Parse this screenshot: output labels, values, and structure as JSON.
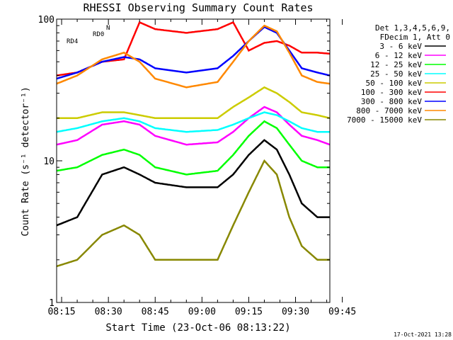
{
  "chart_data": {
    "type": "line",
    "title": "RHESSI Observing Summary Count Rates",
    "xlabel": "Start Time (23-Oct-06 08:13:22)",
    "ylabel": "Count Rate (s⁻¹ detector⁻¹)",
    "yscale": "log",
    "ylim": [
      1,
      100
    ],
    "y_tick_labels": [
      "1",
      "10",
      "100"
    ],
    "xlim_minutes": [
      13.4,
      101
    ],
    "x_tick_labels": [
      "08:15",
      "08:30",
      "08:45",
      "09:00",
      "09:15",
      "09:30",
      "09:45"
    ],
    "grid": false,
    "legend_placement": "right",
    "legend_header": [
      "Det 1,3,4,5,6,9,",
      "FDecim 1, Att 0"
    ],
    "annotations": [
      "N",
      "RD0",
      "RD4"
    ],
    "timestamp": "17-Oct-2021 13:28",
    "series": [
      {
        "name": "3 - 6 keV",
        "color": "#000000",
        "points": [
          [
            13.4,
            3.5
          ],
          [
            20,
            4
          ],
          [
            28,
            8
          ],
          [
            35,
            9
          ],
          [
            40,
            8
          ],
          [
            45,
            7
          ],
          [
            55,
            6.5
          ],
          [
            65,
            6.5
          ],
          [
            70,
            8
          ],
          [
            75,
            11
          ],
          [
            80,
            14
          ],
          [
            84,
            12
          ],
          [
            88,
            8
          ],
          [
            92,
            5
          ],
          [
            97,
            4
          ],
          [
            101,
            4
          ]
        ]
      },
      {
        "name": "6 - 12 keV",
        "color": "#ff00ff",
        "points": [
          [
            13.4,
            13
          ],
          [
            20,
            14
          ],
          [
            28,
            18
          ],
          [
            35,
            19
          ],
          [
            40,
            18
          ],
          [
            45,
            15
          ],
          [
            55,
            13
          ],
          [
            65,
            13.5
          ],
          [
            70,
            16
          ],
          [
            75,
            20
          ],
          [
            80,
            24
          ],
          [
            84,
            22
          ],
          [
            88,
            18
          ],
          [
            92,
            15
          ],
          [
            97,
            14
          ],
          [
            101,
            13
          ]
        ]
      },
      {
        "name": "12 - 25 keV",
        "color": "#00ff00",
        "points": [
          [
            13.4,
            8.5
          ],
          [
            20,
            9
          ],
          [
            28,
            11
          ],
          [
            35,
            12
          ],
          [
            40,
            11
          ],
          [
            45,
            9
          ],
          [
            55,
            8
          ],
          [
            65,
            8.5
          ],
          [
            70,
            11
          ],
          [
            75,
            15
          ],
          [
            80,
            19
          ],
          [
            84,
            17
          ],
          [
            88,
            13
          ],
          [
            92,
            10
          ],
          [
            97,
            9
          ],
          [
            101,
            9
          ]
        ]
      },
      {
        "name": "25 - 50 keV",
        "color": "#00ffff",
        "points": [
          [
            13.4,
            16
          ],
          [
            20,
            17
          ],
          [
            28,
            19
          ],
          [
            35,
            20
          ],
          [
            40,
            19
          ],
          [
            45,
            17
          ],
          [
            55,
            16
          ],
          [
            65,
            16.5
          ],
          [
            70,
            18
          ],
          [
            75,
            20
          ],
          [
            80,
            22
          ],
          [
            84,
            21
          ],
          [
            88,
            19
          ],
          [
            92,
            17
          ],
          [
            97,
            16
          ],
          [
            101,
            16
          ]
        ]
      },
      {
        "name": "50 - 100 keV",
        "color": "#cccc00",
        "points": [
          [
            13.4,
            20
          ],
          [
            20,
            20
          ],
          [
            28,
            22
          ],
          [
            35,
            22
          ],
          [
            40,
            21
          ],
          [
            45,
            20
          ],
          [
            55,
            20
          ],
          [
            65,
            20
          ],
          [
            70,
            24
          ],
          [
            75,
            28
          ],
          [
            80,
            33
          ],
          [
            84,
            30
          ],
          [
            88,
            26
          ],
          [
            92,
            22
          ],
          [
            97,
            21
          ],
          [
            101,
            20
          ]
        ]
      },
      {
        "name": "100 - 300 keV",
        "color": "#ff0000",
        "points": [
          [
            13.4,
            40
          ],
          [
            20,
            42
          ],
          [
            28,
            50
          ],
          [
            35,
            52
          ],
          [
            40,
            95
          ],
          [
            45,
            85
          ],
          [
            55,
            80
          ],
          [
            65,
            85
          ],
          [
            70,
            95
          ],
          [
            75,
            60
          ],
          [
            80,
            68
          ],
          [
            84,
            70
          ],
          [
            88,
            65
          ],
          [
            92,
            58
          ],
          [
            97,
            58
          ],
          [
            101,
            57
          ]
        ]
      },
      {
        "name": "300 - 800 keV",
        "color": "#0000ff",
        "points": [
          [
            13.4,
            38
          ],
          [
            20,
            42
          ],
          [
            28,
            50
          ],
          [
            35,
            54
          ],
          [
            40,
            52
          ],
          [
            45,
            45
          ],
          [
            55,
            42
          ],
          [
            65,
            45
          ],
          [
            70,
            55
          ],
          [
            75,
            70
          ],
          [
            80,
            88
          ],
          [
            84,
            80
          ],
          [
            88,
            60
          ],
          [
            92,
            45
          ],
          [
            97,
            42
          ],
          [
            101,
            40
          ]
        ]
      },
      {
        "name": "800 - 7000 keV",
        "color": "#ff8800",
        "points": [
          [
            13.4,
            35
          ],
          [
            20,
            40
          ],
          [
            28,
            52
          ],
          [
            35,
            58
          ],
          [
            40,
            50
          ],
          [
            45,
            38
          ],
          [
            55,
            33
          ],
          [
            65,
            36
          ],
          [
            70,
            50
          ],
          [
            75,
            70
          ],
          [
            80,
            90
          ],
          [
            84,
            82
          ],
          [
            88,
            58
          ],
          [
            92,
            40
          ],
          [
            97,
            36
          ],
          [
            101,
            35
          ]
        ]
      },
      {
        "name": "7000 - 15000 keV",
        "color": "#888800",
        "points": [
          [
            13.4,
            1.8
          ],
          [
            20,
            2
          ],
          [
            28,
            3
          ],
          [
            35,
            3.5
          ],
          [
            40,
            3
          ],
          [
            45,
            2
          ],
          [
            55,
            2
          ],
          [
            65,
            2
          ],
          [
            70,
            3.5
          ],
          [
            75,
            6
          ],
          [
            80,
            10
          ],
          [
            84,
            8
          ],
          [
            88,
            4
          ],
          [
            92,
            2.5
          ],
          [
            97,
            2
          ],
          [
            101,
            2
          ]
        ]
      }
    ]
  }
}
